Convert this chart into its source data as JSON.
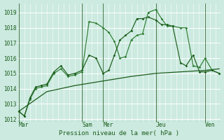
{
  "bg_color": "#cceae0",
  "grid_color": "#b0d8cc",
  "line_color_dark": "#1a5c1a",
  "line_color_med": "#2e7d32",
  "xlabel": "Pression niveau de la mer( hPa )",
  "ylim": [
    1011.8,
    1019.6
  ],
  "yticks": [
    1012,
    1013,
    1014,
    1015,
    1016,
    1017,
    1018,
    1019
  ],
  "day_labels": [
    "Mar",
    "Sam",
    "Mer",
    "Jeu",
    "Ven"
  ],
  "day_x": [
    0,
    90,
    120,
    195,
    265
  ],
  "xmax": 285,
  "series1_x": [
    0,
    8,
    16,
    24,
    32,
    40,
    50,
    60,
    70,
    80,
    90,
    100,
    110,
    120,
    128,
    136,
    144,
    152,
    160,
    168,
    176,
    184,
    195,
    203,
    211,
    219,
    230,
    238,
    248,
    257,
    265,
    275,
    285
  ],
  "series1_y": [
    1012.5,
    1012.2,
    1013.3,
    1014.0,
    1014.1,
    1014.2,
    1015.0,
    1015.3,
    1014.8,
    1014.9,
    1015.1,
    1018.4,
    1018.3,
    1018.0,
    1017.7,
    1017.1,
    1016.0,
    1016.1,
    1017.2,
    1017.5,
    1017.6,
    1019.0,
    1019.2,
    1018.6,
    1018.1,
    1018.1,
    1018.0,
    1018.0,
    1015.5,
    1015.4,
    1016.0,
    1015.2,
    1015.0
  ],
  "series2_x": [
    0,
    8,
    16,
    24,
    32,
    40,
    50,
    60,
    70,
    80,
    90,
    100,
    110,
    120,
    128,
    136,
    144,
    152,
    160,
    168,
    176,
    184,
    195,
    203,
    211,
    219,
    230,
    238,
    248,
    257,
    265,
    275,
    285
  ],
  "series2_y": [
    1012.5,
    1012.2,
    1013.4,
    1014.1,
    1014.2,
    1014.3,
    1015.1,
    1015.5,
    1014.9,
    1015.0,
    1015.2,
    1016.2,
    1016.0,
    1015.0,
    1015.2,
    1016.2,
    1017.2,
    1017.5,
    1017.8,
    1018.6,
    1018.6,
    1018.7,
    1018.5,
    1018.2,
    1018.2,
    1018.1,
    1015.7,
    1015.5,
    1016.2,
    1015.1,
    1015.1,
    1015.2,
    1015.0
  ],
  "series3_x": [
    0,
    40,
    80,
    120,
    160,
    195,
    230,
    265,
    285
  ],
  "series3_y": [
    1012.5,
    1013.8,
    1014.2,
    1014.5,
    1014.8,
    1015.0,
    1015.1,
    1015.2,
    1015.3
  ]
}
